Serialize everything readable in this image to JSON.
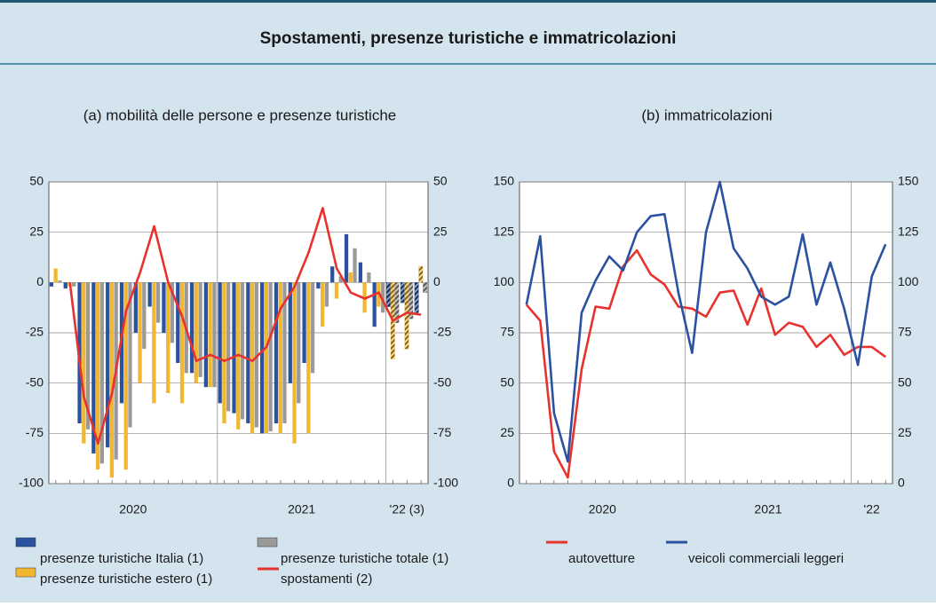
{
  "title": "Spostamenti, presenze turistiche e immatricolazioni",
  "chart_data": [
    {
      "type": "bar",
      "title": "(a) mobilità delle persone e presenze turistiche",
      "categories": [
        "2020",
        null,
        null,
        null,
        null,
        null,
        null,
        null,
        null,
        null,
        null,
        null,
        "2021",
        null,
        null,
        null,
        null,
        null,
        null,
        null,
        null,
        null,
        null,
        null,
        "'22 (3)",
        null,
        null
      ],
      "ylim": [
        -100,
        50
      ],
      "yticks": [
        -100,
        -75,
        -50,
        -25,
        0,
        25,
        50
      ],
      "grid": true,
      "series": [
        {
          "name": "presenze turistiche Italia (1)",
          "type": "bar",
          "color": "#2a52a0",
          "values": [
            -2,
            -3,
            -70,
            -85,
            -82,
            -60,
            -25,
            -12,
            -25,
            -40,
            -45,
            -52,
            -60,
            -65,
            -70,
            -75,
            -70,
            -50,
            -40,
            -3,
            8,
            24,
            10,
            -22,
            -12,
            -10,
            -15
          ]
        },
        {
          "name": "presenze turistiche estero (1)",
          "type": "bar",
          "color": "#f2b631",
          "values": [
            7,
            -2,
            -80,
            -93,
            -97,
            -93,
            -50,
            -60,
            -55,
            -60,
            -50,
            -52,
            -70,
            -73,
            -75,
            -75,
            -75,
            -80,
            -75,
            -22,
            -8,
            5,
            -15,
            -12,
            -38,
            -33,
            8
          ]
        },
        {
          "name": "presenze turistiche totale (1)",
          "type": "bar",
          "color": "#9a9a9a",
          "values": [
            1,
            -2,
            -73,
            -90,
            -88,
            -72,
            -33,
            -20,
            -30,
            -45,
            -47,
            -52,
            -64,
            -68,
            -72,
            -74,
            -70,
            -60,
            -45,
            -12,
            3,
            17,
            5,
            -15,
            -20,
            -18,
            -5
          ]
        },
        {
          "name": "spostamenti (2)",
          "type": "line",
          "color": "#e8322e",
          "values": [
            null,
            0,
            -57,
            -80,
            -55,
            -14,
            5,
            28,
            0,
            -17,
            -39,
            -36,
            -39,
            -36,
            -39,
            -32,
            -13,
            -2,
            15,
            37,
            7,
            -5,
            -8,
            -5,
            -19,
            -15,
            -16
          ]
        }
      ]
    },
    {
      "type": "line",
      "title": "(b) immatricolazioni",
      "categories": [
        "2020",
        null,
        null,
        null,
        null,
        null,
        null,
        null,
        null,
        null,
        null,
        null,
        "2021",
        null,
        null,
        null,
        null,
        null,
        null,
        null,
        null,
        null,
        null,
        null,
        "'22",
        null,
        null
      ],
      "ylim": [
        0,
        150
      ],
      "yticks": [
        0,
        25,
        50,
        75,
        100,
        125,
        150
      ],
      "grid": true,
      "series": [
        {
          "name": "autovetture",
          "type": "line",
          "color": "#e8322e",
          "values": [
            89,
            81,
            16,
            3,
            57,
            88,
            87,
            108,
            116,
            104,
            99,
            88,
            87,
            83,
            95,
            96,
            79,
            97,
            74,
            80,
            78,
            68,
            74,
            64,
            68,
            68,
            63
          ]
        },
        {
          "name": "veicoli commerciali leggeri",
          "type": "line",
          "color": "#2a52a0",
          "values": [
            89,
            123,
            35,
            11,
            85,
            101,
            113,
            106,
            125,
            133,
            134,
            95,
            65,
            125,
            150,
            117,
            107,
            93,
            89,
            93,
            124,
            89,
            110,
            87,
            59,
            103,
            119
          ]
        }
      ]
    }
  ]
}
